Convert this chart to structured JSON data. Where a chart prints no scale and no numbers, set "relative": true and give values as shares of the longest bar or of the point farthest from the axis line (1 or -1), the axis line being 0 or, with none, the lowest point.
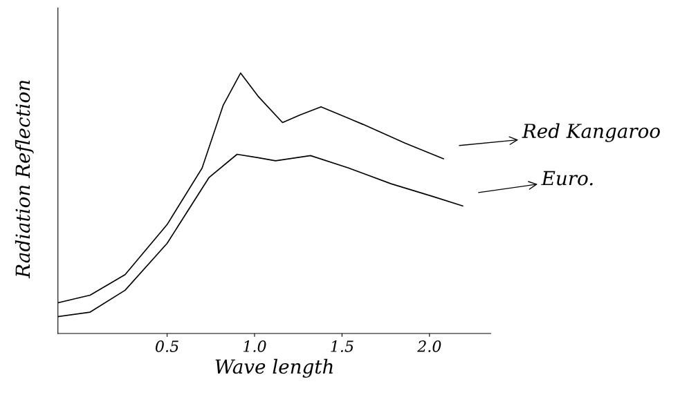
{
  "chart_data": {
    "type": "line",
    "relative": true,
    "xlabel": "Wave length",
    "ylabel": "Radiation Reflection",
    "xlim": [
      -0.124,
      2.35
    ],
    "xticks": [
      {
        "value": 0.5,
        "label": "0.5"
      },
      {
        "value": 1.0,
        "label": "1.0"
      },
      {
        "value": 1.5,
        "label": "1.5"
      },
      {
        "value": 2.0,
        "label": "2.0"
      }
    ],
    "grid": false,
    "legend": "right",
    "marker": "none",
    "line_style": "solid",
    "series": [
      {
        "name": "Red Kangaroo",
        "color": "#000000",
        "x": [
          -0.124,
          0.06,
          0.26,
          0.5,
          0.7,
          0.82,
          0.92,
          1.02,
          1.16,
          1.26,
          1.38,
          1.62,
          1.86,
          2.08
        ],
        "values": [
          0.118,
          0.147,
          0.226,
          0.418,
          0.635,
          0.875,
          1.0,
          0.911,
          0.81,
          0.839,
          0.87,
          0.803,
          0.731,
          0.671
        ]
      },
      {
        "name": "Euro.",
        "color": "#000000",
        "x": [
          -0.124,
          0.06,
          0.26,
          0.5,
          0.74,
          0.9,
          1.02,
          1.12,
          1.32,
          1.54,
          1.78,
          2.02,
          2.19
        ],
        "values": [
          0.065,
          0.082,
          0.166,
          0.346,
          0.599,
          0.688,
          0.675,
          0.663,
          0.683,
          0.635,
          0.575,
          0.526,
          0.49
        ]
      }
    ]
  }
}
